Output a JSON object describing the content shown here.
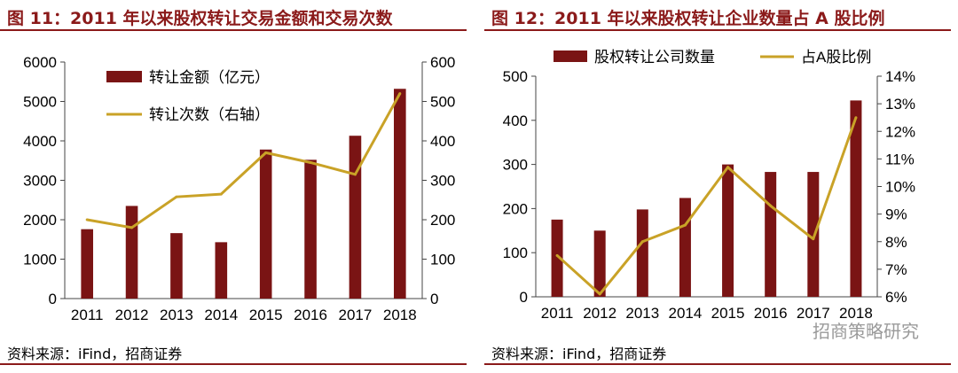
{
  "colors": {
    "bar": "#7a1414",
    "line": "#c9a227",
    "accent": "#8b1a1a"
  },
  "panels": [
    {
      "title": "图 11：2011 年以来股权转让交易金额和交易次数",
      "source": "资料来源：iFind，招商证券"
    },
    {
      "title": "图 12：2011 年以来股权转让企业数量占 A 股比例",
      "source": "资料来源：iFind，招商证券"
    }
  ],
  "watermark": "招商策略研究",
  "chart_data": [
    {
      "type": "bar+line",
      "categories": [
        "2011",
        "2012",
        "2013",
        "2014",
        "2015",
        "2016",
        "2017",
        "2018"
      ],
      "series": [
        {
          "name": "转让金额（亿元）",
          "type": "bar",
          "axis": "left",
          "values": [
            1760,
            2350,
            1660,
            1430,
            3780,
            3520,
            4130,
            5320
          ]
        },
        {
          "name": "转让次数（右轴）",
          "type": "line",
          "axis": "right",
          "values": [
            200,
            180,
            258,
            265,
            370,
            345,
            315,
            520
          ]
        }
      ],
      "left_axis": {
        "ylim": [
          0,
          6000
        ],
        "ticks": [
          "0",
          "1000",
          "2000",
          "3000",
          "4000",
          "5000",
          "6000"
        ]
      },
      "right_axis": {
        "ylim": [
          0,
          600
        ],
        "ticks": [
          "0",
          "100",
          "200",
          "300",
          "400",
          "500",
          "600"
        ]
      },
      "legend": "top-left",
      "grid": false
    },
    {
      "type": "bar+line",
      "categories": [
        "2011",
        "2012",
        "2013",
        "2014",
        "2015",
        "2016",
        "2017",
        "2018"
      ],
      "series": [
        {
          "name": "股权转让公司数量",
          "type": "bar",
          "axis": "left",
          "values": [
            175,
            150,
            198,
            224,
            300,
            283,
            283,
            445
          ]
        },
        {
          "name": "占A股比例",
          "type": "line",
          "axis": "right",
          "values": [
            7.5,
            6.1,
            8.0,
            8.6,
            10.7,
            9.3,
            8.1,
            12.5
          ]
        }
      ],
      "left_axis": {
        "ylim": [
          0,
          500
        ],
        "ticks": [
          "0",
          "100",
          "200",
          "300",
          "400",
          "500"
        ]
      },
      "right_axis": {
        "ylim": [
          6,
          14
        ],
        "ticks": [
          "6%",
          "7%",
          "8%",
          "9%",
          "10%",
          "11%",
          "12%",
          "13%",
          "14%"
        ]
      },
      "legend": "top",
      "grid": false
    }
  ]
}
